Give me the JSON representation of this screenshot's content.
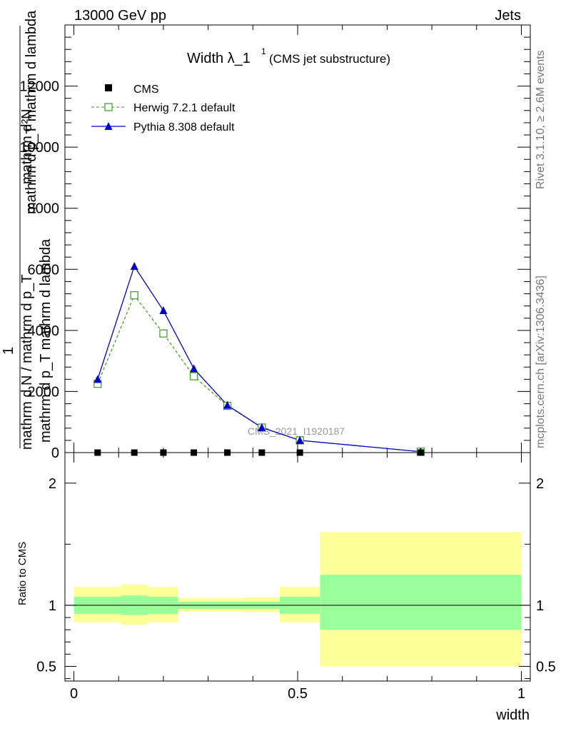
{
  "header": {
    "left": "13000 GeV pp",
    "right": "Jets"
  },
  "side": {
    "rivet": "Rivet 3.1.10, ≥ 2.6M events",
    "mcplots": "mcplots.cern.ch [arXiv:1306.3436]"
  },
  "chart_data": [
    {
      "type": "line",
      "title": "Width λ_1",
      "title_sup": "1",
      "subtitle": "(CMS jet substructure)",
      "watermark": "CMS_2021_I1920187",
      "ylabel_top": "mathrm d²N",
      "ylabel_top_sub": "mathrm d p_T mathrm d lambda",
      "ylabel_one": "1",
      "ylabel_bottom": "mathrm d N / mathrm d p_T",
      "ylabel_bottom_sub": "mathrm d p_T mathrm d lambda",
      "ylim": [
        0,
        14000
      ],
      "yticks": [
        0,
        2000,
        4000,
        6000,
        8000,
        10000,
        12000
      ],
      "ytick_labels": [
        "0",
        "2000",
        "4000",
        "6000",
        "8000",
        "10000",
        "12000"
      ],
      "legend": {
        "position": "top-left",
        "entries": [
          "CMS",
          "Herwig 7.2.1 default",
          "Pythia 8.308 default"
        ]
      },
      "colors": {
        "cms": "#000000",
        "herwig": "#3a9a1a",
        "pythia": "#0000cc"
      },
      "series": [
        {
          "name": "CMS",
          "x": [
            0.053,
            0.135,
            0.2,
            0.268,
            0.343,
            0.42,
            0.505,
            0.775
          ],
          "values": [
            0,
            0,
            0,
            0,
            0,
            0,
            0,
            0
          ]
        },
        {
          "name": "Herwig 7.2.1 default",
          "x": [
            0.053,
            0.135,
            0.2,
            0.268,
            0.343,
            0.42,
            0.505,
            0.775
          ],
          "values": [
            2250,
            5150,
            3900,
            2500,
            1530,
            820,
            400,
            30
          ]
        },
        {
          "name": "Pythia 8.308 default",
          "x": [
            0.053,
            0.135,
            0.2,
            0.268,
            0.343,
            0.42,
            0.505,
            0.775
          ],
          "values": [
            2400,
            6100,
            4650,
            2750,
            1550,
            820,
            400,
            30
          ]
        }
      ]
    },
    {
      "type": "area",
      "ylabel": "Ratio to CMS",
      "xlabel": "width",
      "xlim": [
        -0.02,
        1.02
      ],
      "xticks": [
        0,
        0.5,
        1
      ],
      "xtick_labels": [
        "0",
        "0.5",
        "1"
      ],
      "ylim": [
        0.38,
        2.25
      ],
      "yticks": [
        0.5,
        1,
        2
      ],
      "ytick_labels": [
        "0.5",
        "1",
        "2"
      ],
      "colors": {
        "inner": "#99ff99",
        "outer": "#ffff99"
      },
      "bins": [
        {
          "x0": 0.0,
          "x1": 0.105,
          "inner": [
            0.93,
            1.07
          ],
          "outer": [
            0.86,
            1.15
          ]
        },
        {
          "x0": 0.105,
          "x1": 0.165,
          "inner": [
            0.92,
            1.08
          ],
          "outer": [
            0.84,
            1.17
          ]
        },
        {
          "x0": 0.165,
          "x1": 0.232,
          "inner": [
            0.93,
            1.07
          ],
          "outer": [
            0.86,
            1.15
          ]
        },
        {
          "x0": 0.232,
          "x1": 0.305,
          "inner": [
            0.97,
            1.03
          ],
          "outer": [
            0.95,
            1.06
          ]
        },
        {
          "x0": 0.305,
          "x1": 0.38,
          "inner": [
            0.97,
            1.03
          ],
          "outer": [
            0.95,
            1.06
          ]
        },
        {
          "x0": 0.38,
          "x1": 0.46,
          "inner": [
            0.97,
            1.03
          ],
          "outer": [
            0.945,
            1.065
          ]
        },
        {
          "x0": 0.46,
          "x1": 0.55,
          "inner": [
            0.93,
            1.07
          ],
          "outer": [
            0.86,
            1.15
          ]
        },
        {
          "x0": 0.55,
          "x1": 1.0,
          "inner": [
            0.8,
            1.25
          ],
          "outer": [
            0.5,
            1.6
          ]
        }
      ],
      "reference": 1
    }
  ]
}
